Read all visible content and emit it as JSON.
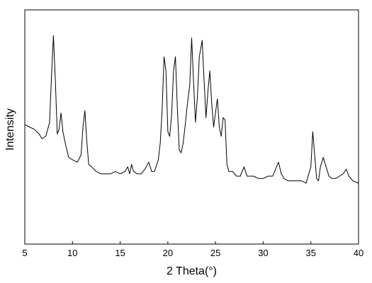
{
  "chart_data": {
    "type": "line",
    "title": "",
    "xlabel": "2 Theta(°)",
    "ylabel": "Intensity",
    "xlim": [
      5,
      40
    ],
    "ylim": [
      0,
      100
    ],
    "x_ticks": [
      5,
      10,
      15,
      20,
      25,
      30,
      35,
      40
    ],
    "x_tick_labels": [
      "5",
      "10",
      "15",
      "20",
      "25",
      "30",
      "35",
      "40"
    ],
    "y_tick_labels_shown": false,
    "grid": false,
    "legend": "none",
    "line_color": "#000000",
    "series": [
      {
        "x": [
          5.0,
          5.5,
          6.0,
          6.5,
          6.8,
          7.2,
          7.6,
          7.8,
          8.0,
          8.2,
          8.4,
          8.6,
          8.8,
          9.0,
          9.3,
          9.6,
          10.0,
          10.5,
          10.9,
          11.1,
          11.3,
          11.5,
          11.7,
          12.0,
          12.5,
          13.0,
          13.5,
          14.0,
          14.5,
          15.0,
          15.5,
          15.8,
          16.0,
          16.2,
          16.4,
          16.8,
          17.2,
          17.6,
          18.0,
          18.3,
          18.6,
          19.0,
          19.2,
          19.4,
          19.6,
          19.8,
          20.0,
          20.2,
          20.4,
          20.6,
          20.8,
          21.0,
          21.2,
          21.4,
          21.6,
          21.8,
          22.0,
          22.3,
          22.5,
          22.7,
          22.9,
          23.1,
          23.3,
          23.6,
          23.8,
          24.0,
          24.2,
          24.4,
          24.6,
          24.8,
          25.0,
          25.2,
          25.4,
          25.6,
          25.8,
          26.0,
          26.2,
          26.4,
          26.8,
          27.2,
          27.6,
          28.0,
          28.3,
          28.6,
          29.0,
          29.5,
          30.0,
          30.5,
          31.0,
          31.3,
          31.6,
          31.9,
          32.2,
          32.6,
          33.0,
          33.5,
          34.0,
          34.5,
          35.0,
          35.2,
          35.4,
          35.6,
          35.8,
          36.0,
          36.3,
          36.6,
          36.9,
          37.2,
          37.6,
          38.0,
          38.4,
          38.7,
          39.0,
          39.4,
          40.0
        ],
        "y": [
          51,
          50,
          49,
          47,
          45,
          46,
          52,
          72,
          89,
          70,
          47,
          49,
          56,
          48,
          42,
          37,
          36,
          35,
          38,
          50,
          57,
          44,
          34,
          33,
          31,
          30,
          30,
          30,
          31,
          30,
          31,
          33,
          30,
          34,
          31,
          30,
          30,
          32,
          35,
          31,
          31,
          36,
          43,
          57,
          80,
          74,
          48,
          46,
          55,
          74,
          80,
          58,
          40,
          39,
          43,
          50,
          58,
          68,
          88,
          69,
          52,
          63,
          80,
          87,
          70,
          54,
          65,
          74,
          60,
          50,
          56,
          62,
          50,
          46,
          54,
          53,
          34,
          31,
          31,
          29,
          29,
          33,
          29,
          29,
          29,
          28,
          28,
          29,
          29,
          32,
          35,
          30,
          28,
          27,
          27,
          27,
          27,
          26,
          33,
          48,
          38,
          28,
          27,
          33,
          37,
          33,
          29,
          28,
          28,
          29,
          30,
          32,
          29,
          27,
          26
        ]
      }
    ]
  }
}
